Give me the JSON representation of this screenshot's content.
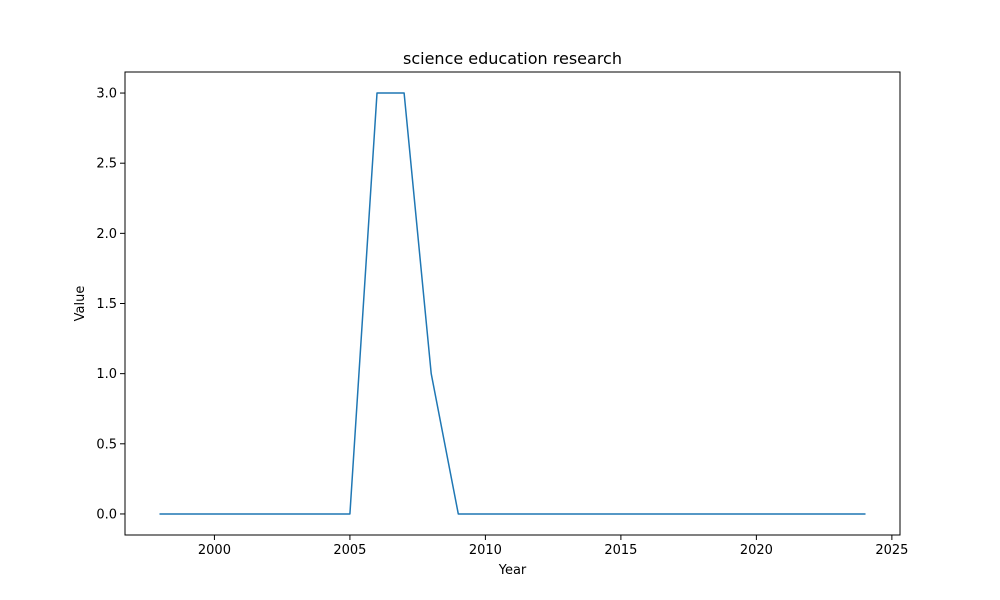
{
  "chart_data": {
    "type": "line",
    "title": "science education research",
    "xlabel": "Year",
    "ylabel": "Value",
    "xlim": [
      1996.7,
      2025.3
    ],
    "ylim": [
      -0.15,
      3.15
    ],
    "x_ticks": [
      2000,
      2005,
      2010,
      2015,
      2020,
      2025
    ],
    "y_ticks": [
      0.0,
      0.5,
      1.0,
      1.5,
      2.0,
      2.5,
      3.0
    ],
    "y_tick_labels": [
      "0.0",
      "0.5",
      "1.0",
      "1.5",
      "2.0",
      "2.5",
      "3.0"
    ],
    "x_tick_labels": [
      "2000",
      "2005",
      "2010",
      "2015",
      "2020",
      "2025"
    ],
    "grid": false,
    "series": [
      {
        "color": "#1f77b4",
        "x": [
          1998,
          1999,
          2000,
          2001,
          2002,
          2003,
          2004,
          2005,
          2006,
          2007,
          2008,
          2009,
          2010,
          2011,
          2012,
          2013,
          2014,
          2015,
          2016,
          2017,
          2018,
          2019,
          2020,
          2021,
          2022,
          2023,
          2024
        ],
        "y": [
          0,
          0,
          0,
          0,
          0,
          0,
          0,
          0,
          3,
          3,
          1,
          0,
          0,
          0,
          0,
          0,
          0,
          0,
          0,
          0,
          0,
          0,
          0,
          0,
          0,
          0,
          0
        ]
      }
    ]
  }
}
